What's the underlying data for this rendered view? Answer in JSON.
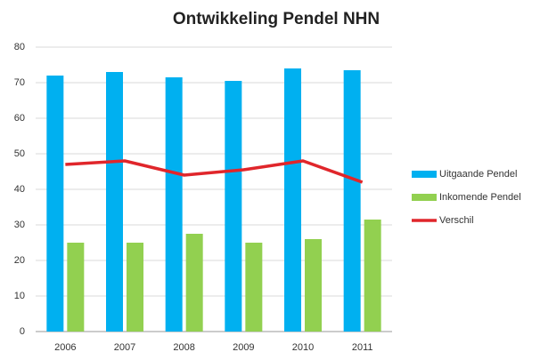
{
  "chart_data": {
    "type": "bar",
    "title": "Ontwikkeling Pendel NHN",
    "categories": [
      "2006",
      "2007",
      "2008",
      "2009",
      "2010",
      "2011"
    ],
    "series": [
      {
        "name": "Uitgaande Pendel",
        "color": "#00b0f0",
        "values": [
          72,
          73,
          71.5,
          70.5,
          74,
          73.5
        ]
      },
      {
        "name": "Inkomende Pendel",
        "color": "#92d050",
        "values": [
          25,
          25,
          27.5,
          25,
          26,
          31.5
        ]
      },
      {
        "name": "Verschil",
        "color": "#e0262b",
        "type": "line",
        "values": [
          47,
          48,
          44,
          45.5,
          48,
          42
        ]
      }
    ],
    "ylim": [
      0,
      80
    ],
    "yticks": [
      0,
      10,
      20,
      30,
      40,
      50,
      60,
      70,
      80
    ],
    "grid": true,
    "legend": "right"
  }
}
